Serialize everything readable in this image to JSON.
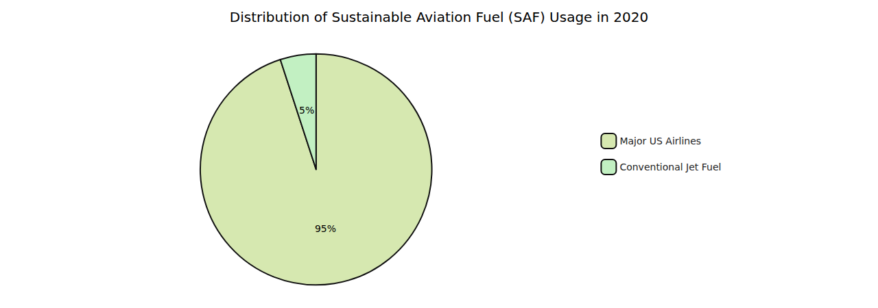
{
  "chart_data": {
    "type": "pie",
    "title": "Distribution of Sustainable Aviation Fuel (SAF) Usage in 2020",
    "categories": [
      "Major US Airlines",
      "Conventional Jet Fuel"
    ],
    "values": [
      95,
      5
    ],
    "value_labels": [
      "95%",
      "5%"
    ],
    "colors": [
      "#d6e8b0",
      "#c2f0c2"
    ],
    "data_labels": true,
    "legend": "right"
  }
}
